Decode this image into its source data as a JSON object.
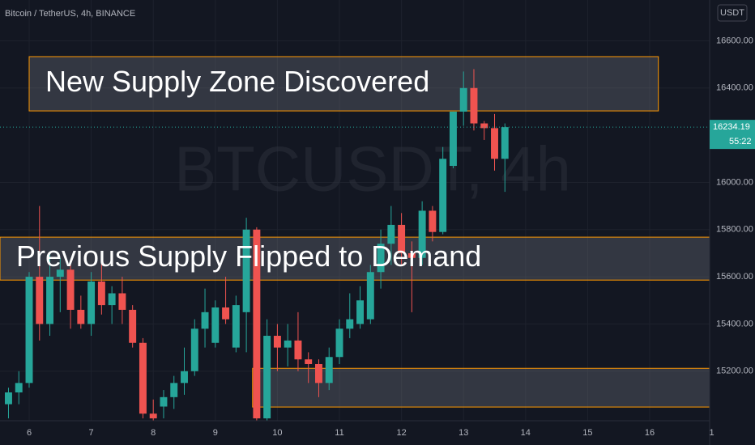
{
  "chart_data": {
    "type": "candlestick",
    "title": "Bitcoin / TetherUS, 4h, BINANCE",
    "watermark": "BTCUSDT, 4h",
    "currency": "USDT",
    "up_color": "#26a69a",
    "down_color": "#ef5350",
    "x": [
      5.6667,
      5.8333,
      6,
      6.1667,
      6.3333,
      6.5,
      6.6667,
      6.8333,
      7,
      7.1667,
      7.3333,
      7.5,
      7.6667,
      7.8333,
      8,
      8.1667,
      8.3333,
      8.5,
      8.6667,
      8.8333,
      9,
      9.1667,
      9.3333,
      9.5,
      9.6667,
      9.8333,
      10,
      10.1667,
      10.3333,
      10.5,
      10.6667,
      10.8333,
      11,
      11.1667,
      11.3333,
      11.5,
      11.6667,
      11.8333,
      12,
      12.1667,
      12.3333,
      12.5,
      12.6667,
      12.8333,
      13,
      13.1667,
      13.3333,
      13.5,
      13.6667
    ],
    "open": [
      15060,
      15110,
      15150,
      15600,
      15400,
      15600,
      15630,
      15460,
      15400,
      15580,
      15480,
      15530,
      15460,
      15320,
      15020,
      15050,
      15090,
      15150,
      15200,
      15380,
      15320,
      15470,
      15300,
      15450,
      15800,
      15000,
      15350,
      15300,
      15330,
      15250,
      15230,
      15150,
      15260,
      15380,
      15400,
      15420,
      15620,
      15740,
      15820,
      15700,
      15680,
      15880,
      15790,
      16070,
      16300,
      16400,
      16250,
      16230,
      16100
    ],
    "high": [
      15130,
      15200,
      15620,
      15900,
      15700,
      15680,
      15650,
      15520,
      15620,
      15700,
      15560,
      15600,
      15480,
      15340,
      15080,
      15120,
      15180,
      15300,
      15420,
      15550,
      15500,
      15600,
      15520,
      15850,
      15810,
      15420,
      15400,
      15400,
      15450,
      15280,
      15250,
      15300,
      15420,
      15530,
      15560,
      15650,
      15800,
      15900,
      15870,
      15750,
      15920,
      15900,
      16150,
      16300,
      16470,
      16480,
      16260,
      16290,
      16250
    ],
    "low": [
      15000,
      15060,
      15130,
      15330,
      15350,
      15450,
      15380,
      15380,
      15350,
      15440,
      15400,
      15400,
      15300,
      15000,
      14990,
      15000,
      15040,
      15100,
      15180,
      15300,
      15300,
      15400,
      15280,
      15280,
      14990,
      14990,
      15200,
      15220,
      15200,
      15150,
      15090,
      15120,
      15230,
      15340,
      15380,
      15400,
      15550,
      15650,
      15650,
      15450,
      15650,
      15750,
      15780,
      16060,
      16240,
      16220,
      16180,
      16050,
      15960
    ],
    "close": [
      15110,
      15150,
      15600,
      15400,
      15600,
      15630,
      15460,
      15400,
      15580,
      15480,
      15530,
      15460,
      15320,
      15020,
      15000,
      15090,
      15150,
      15200,
      15380,
      15450,
      15470,
      15420,
      15480,
      15800,
      15000,
      15350,
      15300,
      15330,
      15250,
      15230,
      15150,
      15260,
      15380,
      15420,
      15500,
      15620,
      15740,
      15820,
      15700,
      15680,
      15880,
      15790,
      16100,
      16300,
      16400,
      16250,
      16230,
      16100,
      16234.19
    ],
    "last_price": 16234.19,
    "countdown": "55:22",
    "zones": [
      {
        "label": "New Supply Zone Discovered",
        "x0": 6,
        "x1": 16.14,
        "top": 16533,
        "bottom": 16303
      },
      {
        "label": "Previous Supply Flipped to Demand",
        "x0": 5.53,
        "x1": 17,
        "top": 15768,
        "bottom": 15586
      },
      {
        "x0": 9.6,
        "x1": 17,
        "top": 15212,
        "bottom": 15048
      }
    ],
    "xlim": [
      5.53,
      16.966
    ],
    "ylim": [
      14990,
      16773
    ],
    "xticks": [
      6,
      7,
      8,
      9,
      10,
      11,
      12,
      13,
      14,
      15,
      16,
      {
        "value": 17,
        "label": "1"
      }
    ],
    "yticks": [
      {
        "value": 15200,
        "label": "15200.00"
      },
      {
        "value": 15400,
        "label": "15400.00"
      },
      {
        "value": 15600,
        "label": "15600.00"
      },
      {
        "value": 15800,
        "label": "15800.00"
      },
      {
        "value": 16000,
        "label": "16000.00"
      },
      {
        "value": 16400,
        "label": "16400.00"
      },
      {
        "value": 16600,
        "label": "16600.00"
      }
    ],
    "grid": true
  }
}
